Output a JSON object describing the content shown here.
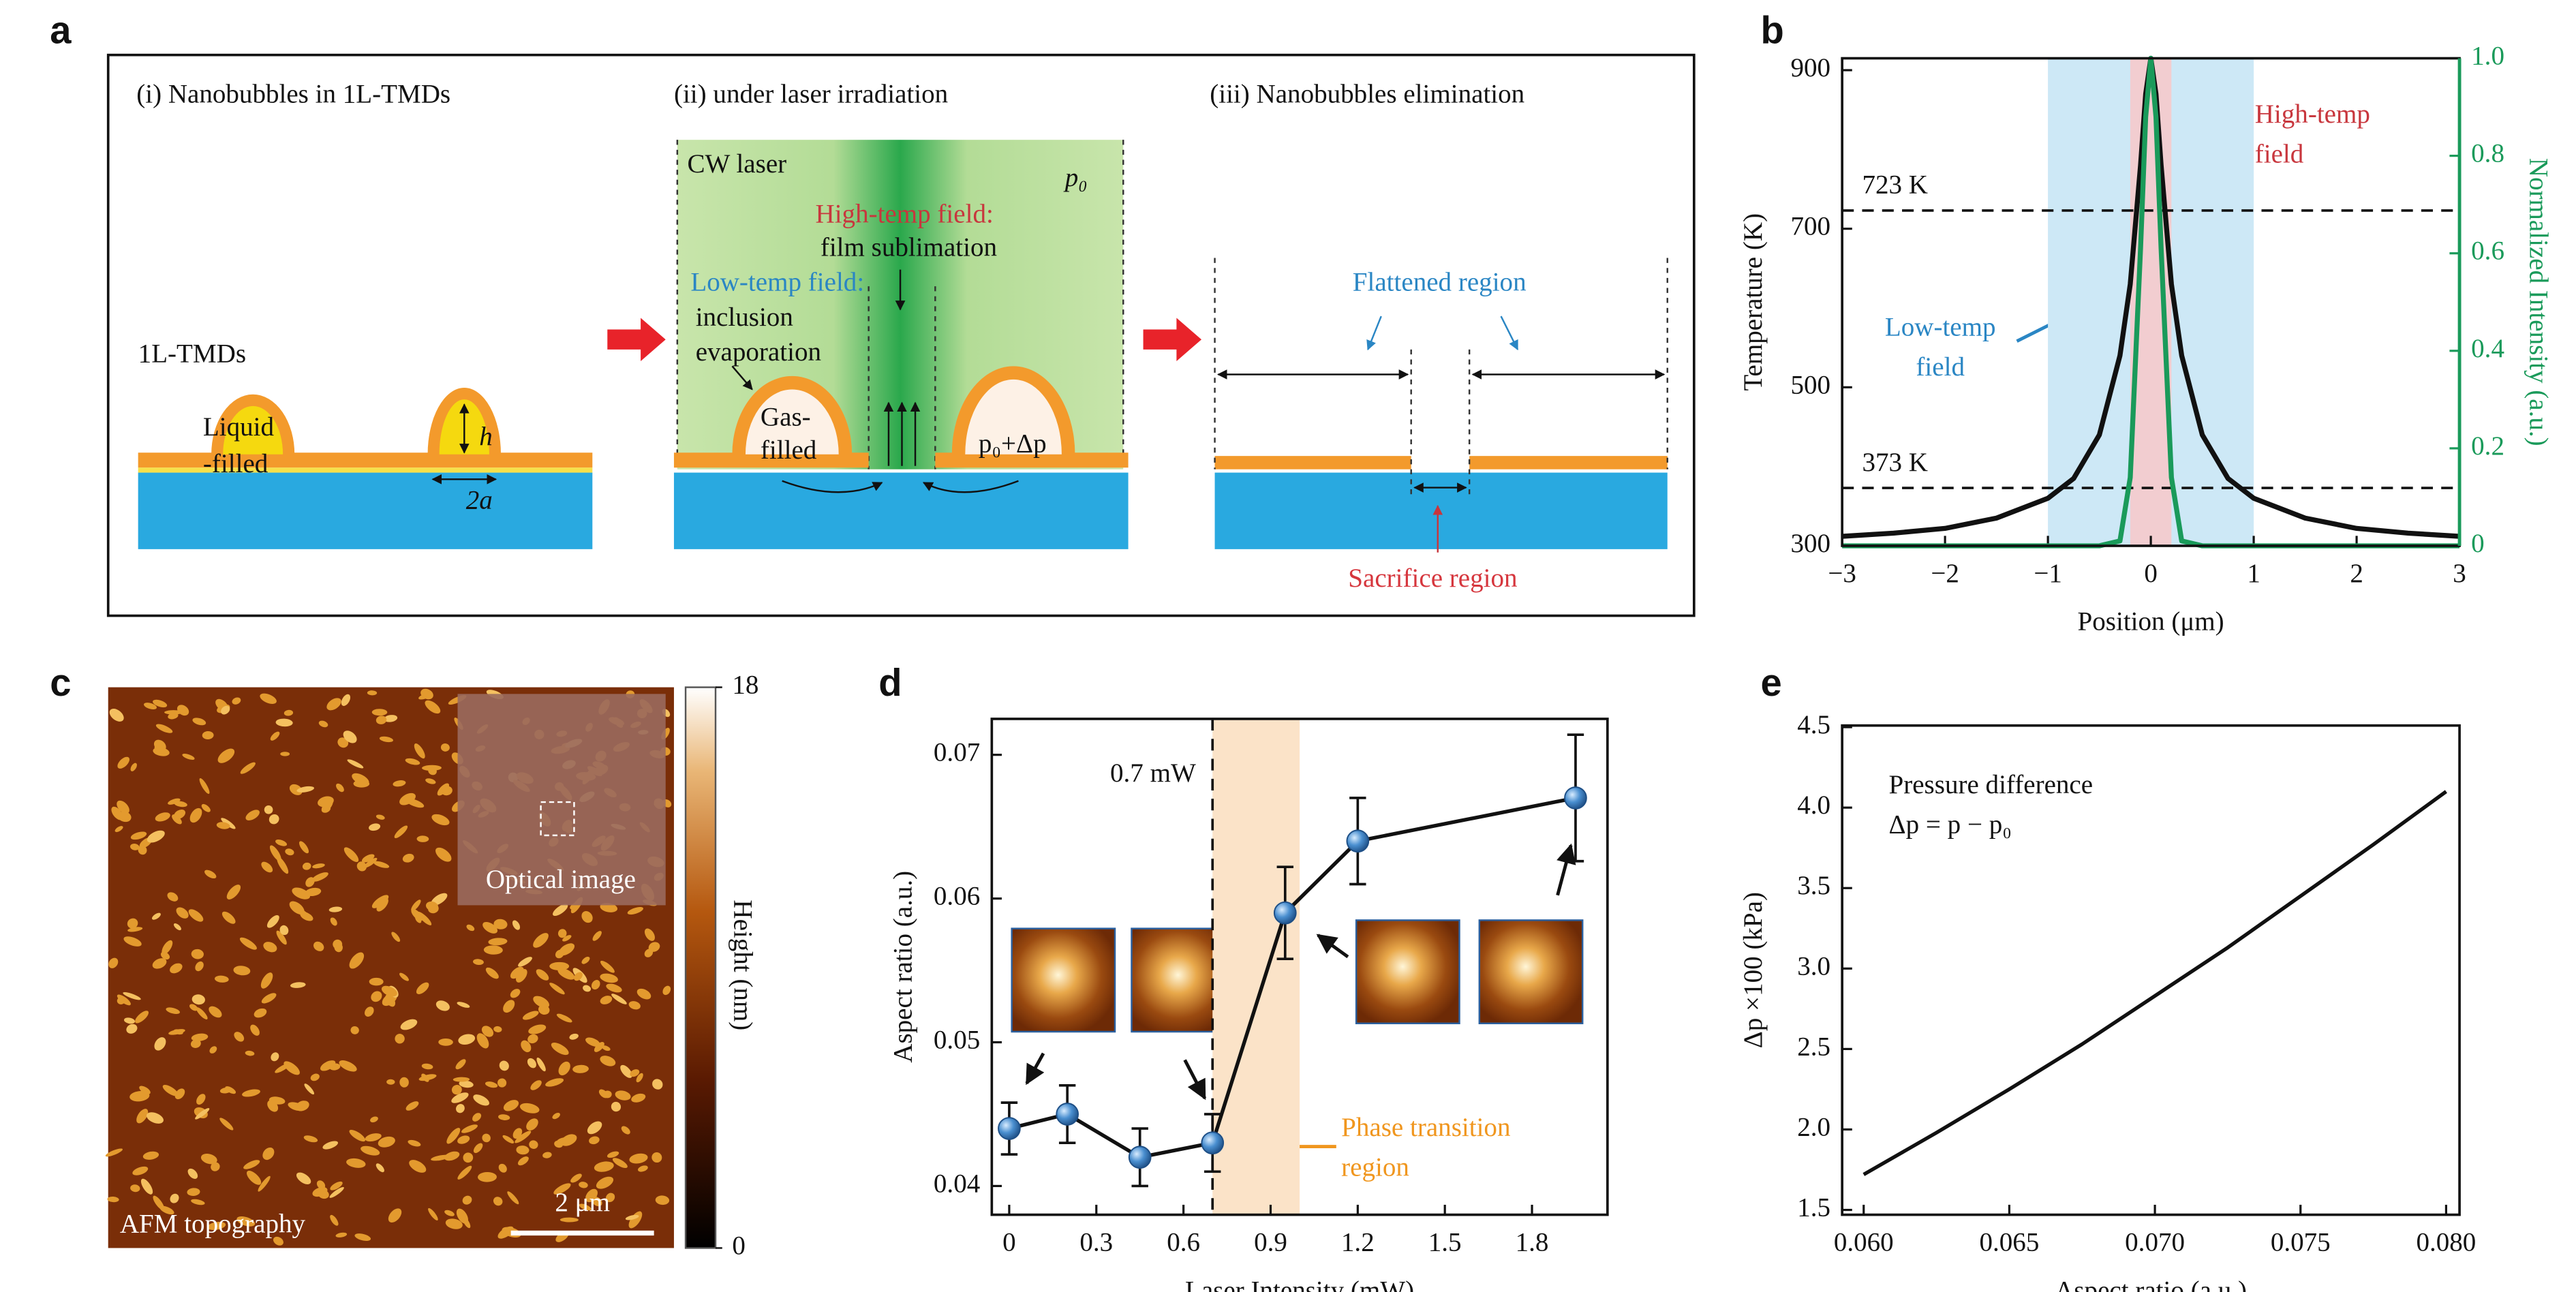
{
  "panel_labels": [
    "a",
    "b",
    "c",
    "d",
    "e"
  ],
  "panel_a": {
    "steps": [
      "(i) Nanobubbles in 1L-TMDs",
      "(ii) under laser irradiation",
      "(iii) Nanobubbles elimination"
    ],
    "tmd": "1L-TMDs",
    "liquid": [
      "Liquid",
      "-filled"
    ],
    "height": "h",
    "width": "2a",
    "laser": "CW laser",
    "pressure": "p₀",
    "high_temp": "High-temp field:",
    "high_temp_note": "film sublimation",
    "low_temp": "Low-temp field:",
    "low_temp_note": [
      "inclusion",
      "evaporation"
    ],
    "gas": [
      "Gas-",
      "filled"
    ],
    "bubble_pressure": "p₀+Δp",
    "flattened": "Flattened region",
    "sacrifice": "Sacrifice region"
  },
  "panel_c": {
    "caption": "AFM topography",
    "inset": "Optical image",
    "scale_bar": "2 μm",
    "colorbar": {
      "label": "Height (nm)",
      "ticks": [
        0,
        18
      ]
    }
  },
  "chart_data": [
    {
      "type": "line",
      "xlabel": "Position (μm)",
      "ylabel": "Temperature (K)",
      "y2label": "Normalized Intensity (a.u.)",
      "x": [
        -3,
        -2.5,
        -2,
        -1.5,
        -1,
        -0.75,
        -0.5,
        -0.3,
        -0.2,
        -0.1,
        -0.05,
        0,
        0.05,
        0.1,
        0.2,
        0.3,
        0.5,
        0.75,
        1,
        1.5,
        2,
        2.5,
        3
      ],
      "series": [
        {
          "color": "#111111",
          "values": [
            312,
            316,
            322,
            335,
            360,
            385,
            440,
            540,
            630,
            780,
            870,
            915,
            870,
            780,
            630,
            540,
            440,
            385,
            360,
            335,
            322,
            316,
            312
          ]
        },
        {
          "color": "#1a9a5a",
          "axis": "y2",
          "values": [
            0,
            0,
            0,
            0,
            0,
            0,
            0,
            0.01,
            0.14,
            0.61,
            0.88,
            1,
            0.88,
            0.61,
            0.14,
            0.01,
            0,
            0,
            0,
            0,
            0,
            0,
            0
          ]
        }
      ],
      "xlim": [
        -3,
        3
      ],
      "xticks": [
        {
          "value": -3,
          "label": "−3"
        },
        {
          "value": -2,
          "label": "−2"
        },
        {
          "value": -1,
          "label": "−1"
        },
        0,
        1,
        2,
        3
      ],
      "ylim": [
        300,
        915
      ],
      "yticks": [
        300,
        500,
        700,
        900
      ],
      "y2lim": [
        0,
        1
      ],
      "y2ticks": [
        0,
        0.2,
        0.4,
        0.6,
        0.8,
        {
          "value": 1,
          "label": "1.0"
        }
      ],
      "bands": [
        {
          "range": [
            -1,
            1
          ],
          "color": "#cde8f6"
        },
        {
          "range": [
            -0.2,
            0.2
          ],
          "color": "#f2cdd0"
        }
      ],
      "hlines": [
        {
          "value": 723,
          "label": "723 K"
        },
        {
          "value": 373,
          "label": "373 K"
        }
      ],
      "annotations": [
        {
          "lines": [
            "High-temp",
            "field"
          ],
          "color": "#c8363d"
        },
        {
          "lines": [
            "Low-temp",
            "field"
          ],
          "color": "#2a86c4"
        }
      ]
    },
    {
      "type": "line",
      "xlabel": "Laser Intensity (mW)",
      "ylabel": "Aspect ratio (a.u.)",
      "x": [
        0,
        0.2,
        0.45,
        0.7,
        0.95,
        1.2,
        1.95
      ],
      "series": [
        {
          "color": "#111111",
          "marker": "#4a8fd0",
          "values": [
            0.044,
            0.045,
            0.042,
            0.043,
            0.059,
            0.064,
            0.067
          ],
          "errors": [
            0.0018,
            0.002,
            0.002,
            0.002,
            0.0032,
            0.003,
            0.0044
          ]
        }
      ],
      "xlim": [
        -0.06,
        2.06
      ],
      "xticks": [
        0,
        0.3,
        0.6,
        0.9,
        1.2,
        1.5,
        1.8
      ],
      "ylim": [
        0.038,
        0.0725
      ],
      "yticks": [
        0.04,
        0.05,
        0.06,
        0.07
      ],
      "bands": [
        {
          "range": [
            0.7,
            1
          ],
          "color": "#fbe3c8"
        }
      ],
      "vlines": [
        {
          "value": 0.7,
          "label": "0.7 mW"
        }
      ],
      "annotations": [
        {
          "lines": [
            "Phase transition",
            "region"
          ],
          "color": "#f0961e"
        }
      ]
    },
    {
      "type": "line",
      "xlabel": "Aspect ratio (a.u.)",
      "ylabel": "Δp ×100 (kPa)",
      "x": [
        0.06,
        0.0625,
        0.065,
        0.0675,
        0.07,
        0.0725,
        0.075,
        0.0775,
        0.08
      ],
      "series": [
        {
          "color": "#111111",
          "values": [
            1.72,
            1.98,
            2.25,
            2.53,
            2.83,
            3.13,
            3.45,
            3.77,
            4.1
          ]
        }
      ],
      "xlim": [
        0.05926,
        0.08046
      ],
      "xticks": [
        {
          "value": 0.06,
          "label": "0.060"
        },
        0.065,
        {
          "value": 0.07,
          "label": "0.070"
        },
        0.075,
        {
          "value": 0.08,
          "label": "0.080"
        }
      ],
      "ylim": [
        1.47,
        4.51
      ],
      "yticks": [
        1.5,
        {
          "value": 2,
          "label": "2.0"
        },
        2.5,
        {
          "value": 3,
          "label": "3.0"
        },
        3.5,
        {
          "value": 4,
          "label": "4.0"
        },
        4.5
      ],
      "annotations": [
        {
          "lines": [
            "Pressure difference",
            "Δp = p − p₀"
          ],
          "color": "#111111"
        }
      ]
    }
  ]
}
